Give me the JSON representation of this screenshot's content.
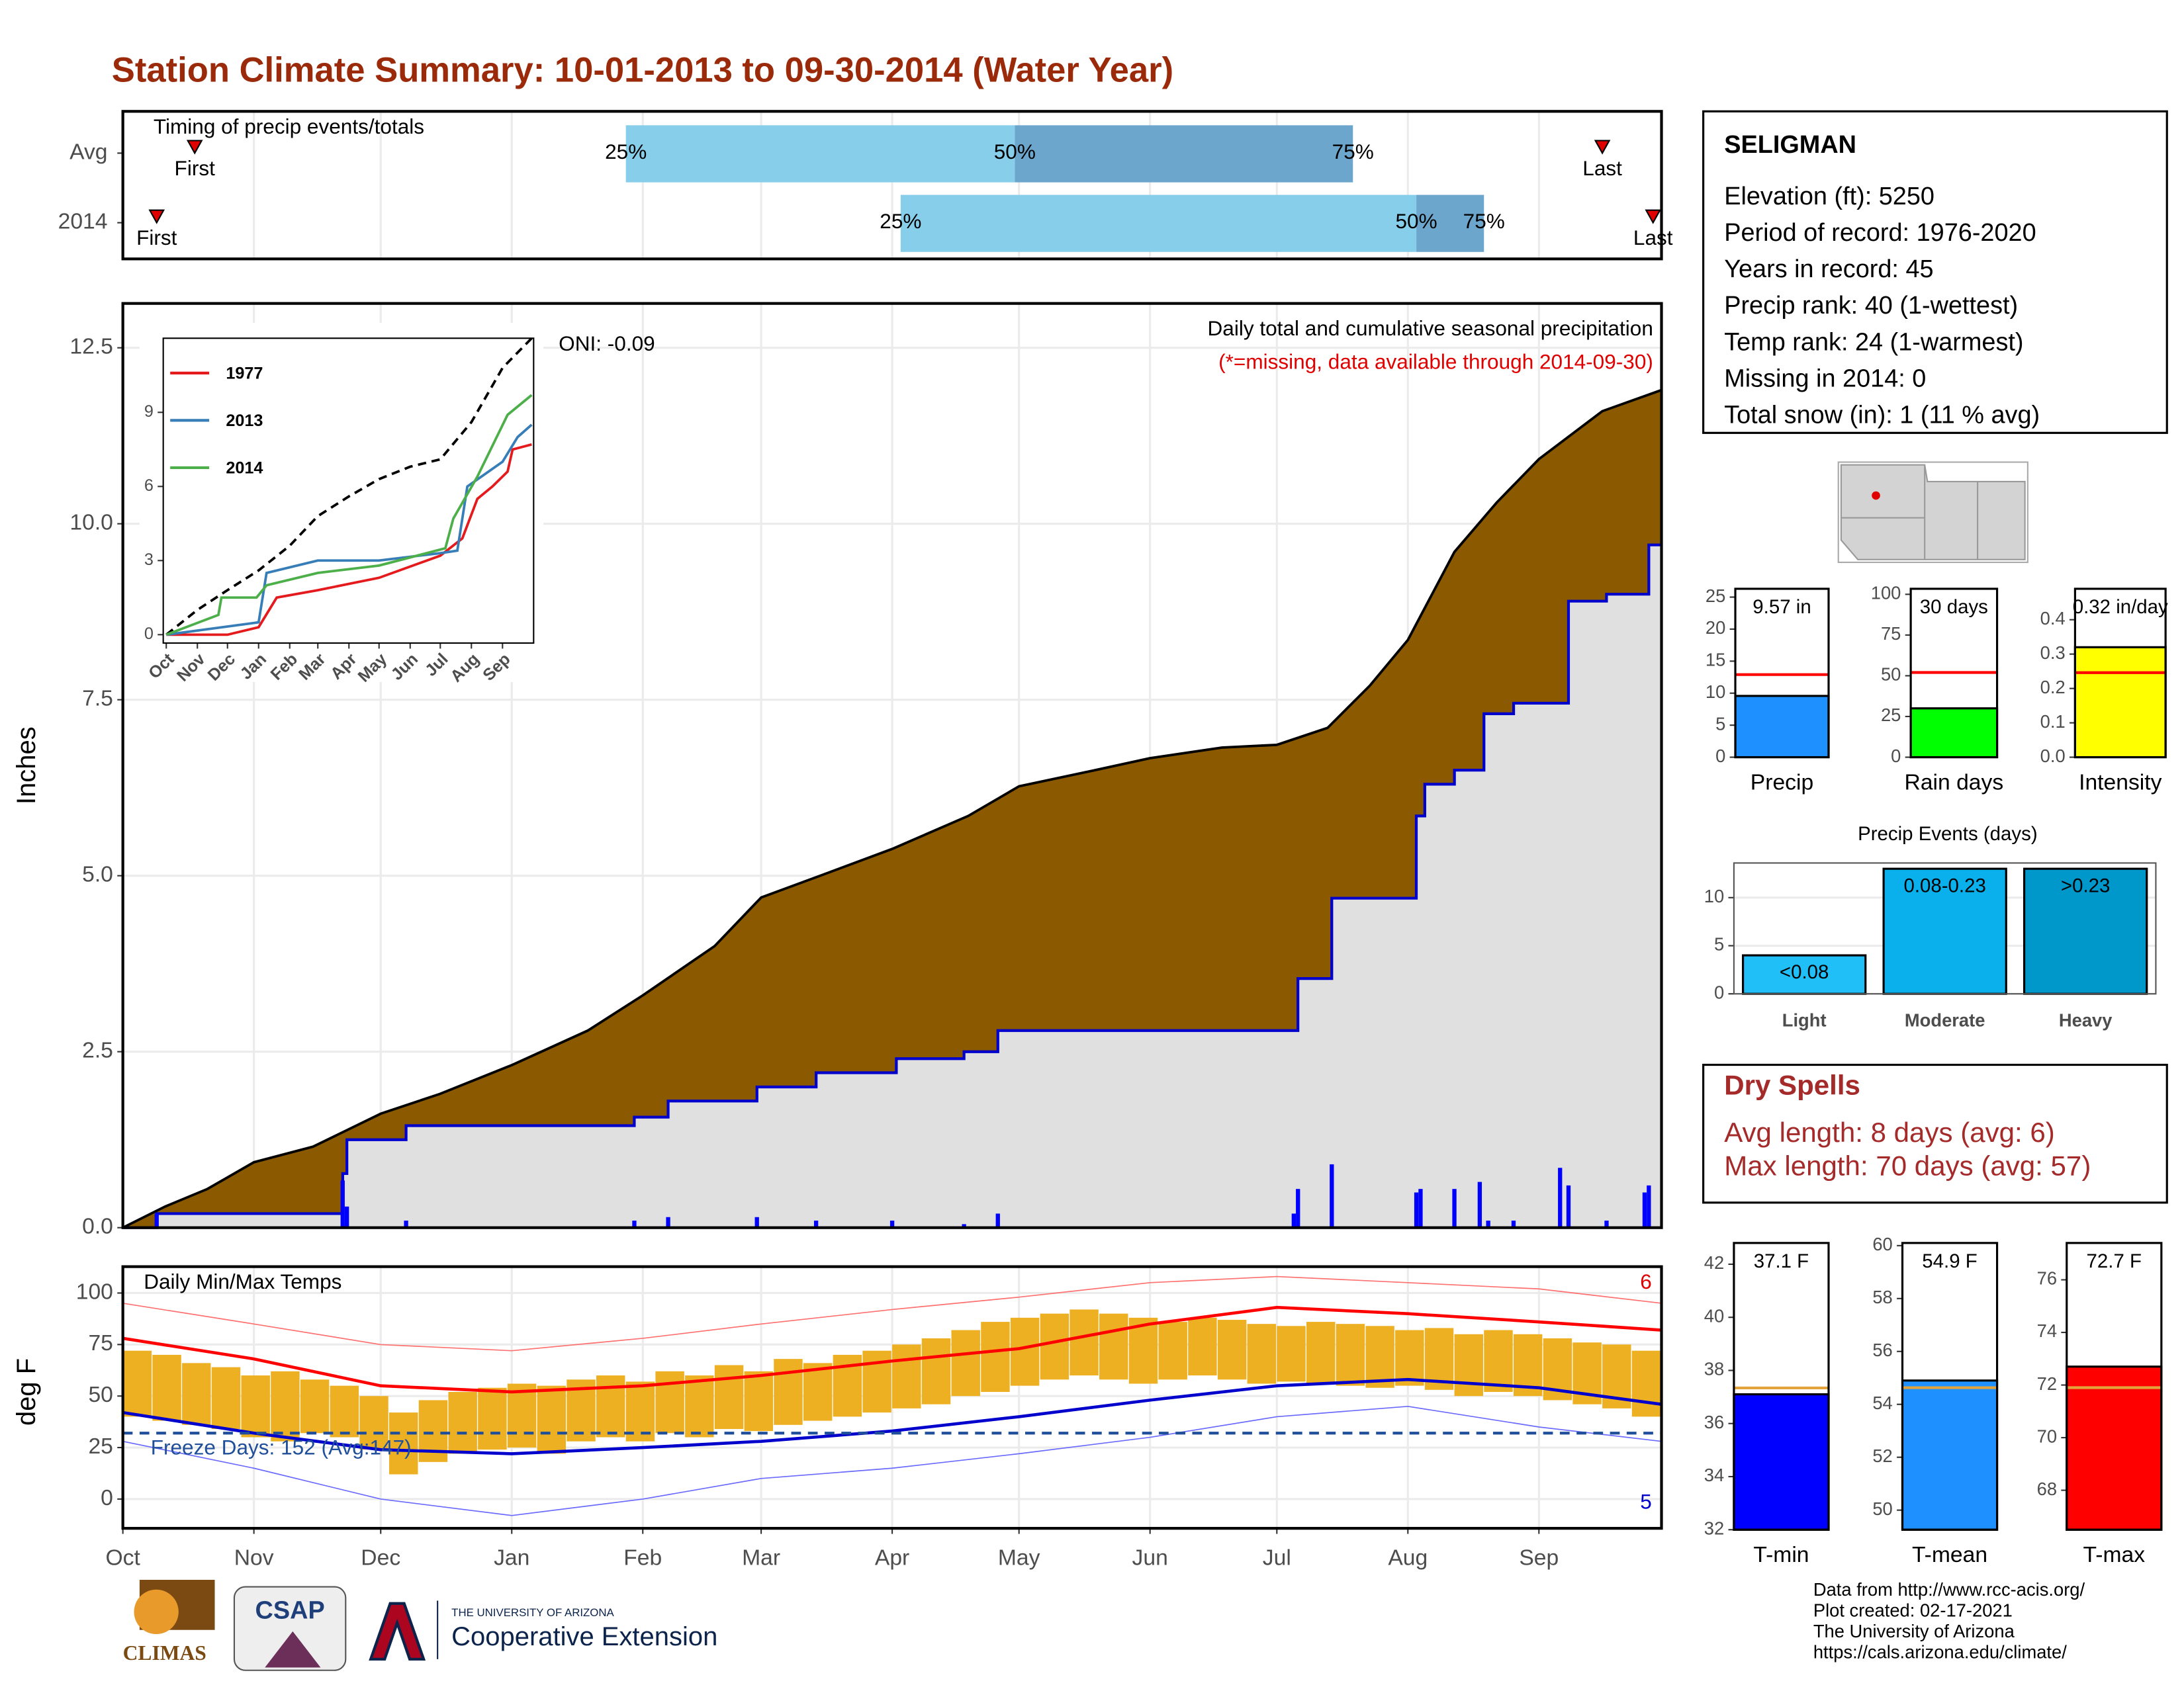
{
  "title": "Station Climate Summary: 10-01-2013 to 09-30-2014 (Water Year)",
  "chart_data": [
    {
      "type": "timing",
      "subtitle": "Timing of precip events/totals",
      "xlim": [
        0,
        364
      ],
      "rows": [
        {
          "name": "Avg",
          "first": 17,
          "q25": 119,
          "q50": 211,
          "q75": 291,
          "last": 350
        },
        {
          "name": "2014",
          "first": 8,
          "q25": 184,
          "q50": 306,
          "q75": 322,
          "last": 362
        }
      ],
      "labels": {
        "first": "First",
        "last": "Last",
        "q25": "25%",
        "q50": "50%",
        "q75": "75%"
      },
      "colors": [
        "#87CEEB",
        "#6CA6CD"
      ],
      "marker_color": "#E00000"
    },
    {
      "type": "precip",
      "ylabel": "Inches",
      "xlim": [
        0,
        364
      ],
      "ylim": [
        0,
        13.13
      ],
      "yticks": [
        {
          "value": 0,
          "label": "0.0"
        },
        2.5,
        {
          "value": 5,
          "label": "5.0"
        },
        7.5,
        {
          "value": 10,
          "label": "10.0"
        },
        12.5
      ],
      "grid": true,
      "annotations": [
        "Daily total and cumulative seasonal precipitation",
        "(*=missing, data available through 2014-09-30)",
        "ONI: -0.09"
      ],
      "annotation_colors": [
        "#000000",
        "#E00000",
        "#000000"
      ],
      "average": {
        "color": "#8B5A00",
        "x": [
          0,
          10,
          20,
          31,
          45,
          61,
          75,
          92,
          110,
          123,
          140,
          151,
          165,
          182,
          200,
          212,
          230,
          243,
          260,
          273,
          285,
          295,
          304,
          315,
          325,
          335,
          350,
          364
        ],
        "values": [
          0,
          0.3,
          0.55,
          0.93,
          1.15,
          1.62,
          1.9,
          2.31,
          2.8,
          3.3,
          4.0,
          4.69,
          5.0,
          5.38,
          5.85,
          6.27,
          6.5,
          6.67,
          6.82,
          6.86,
          7.1,
          7.7,
          8.35,
          9.6,
          10.3,
          10.92,
          11.6,
          11.9
        ]
      },
      "cumulative": {
        "color": "#0000CD",
        "fill": "#E0E0E0",
        "x": [
          0,
          8,
          52,
          53,
          67,
          121,
          129,
          150,
          164,
          183,
          199,
          207,
          278,
          286,
          306,
          308,
          315,
          322,
          329,
          342,
          351,
          361,
          364
        ],
        "values": [
          0,
          0.2,
          0.77,
          1.25,
          1.45,
          1.57,
          1.8,
          2.0,
          2.2,
          2.4,
          2.5,
          2.8,
          3.54,
          4.68,
          5.85,
          6.3,
          6.5,
          7.3,
          7.45,
          8.9,
          9.0,
          9.7,
          9.7
        ]
      },
      "daily": {
        "color": "#0000FF",
        "x": [
          8,
          52,
          53,
          67,
          121,
          129,
          150,
          164,
          182,
          199,
          207,
          277,
          278,
          286,
          306,
          307,
          315,
          321,
          323,
          329,
          340,
          342,
          351,
          360,
          361
        ],
        "values": [
          0.2,
          0.67,
          0.3,
          0.1,
          0.1,
          0.15,
          0.15,
          0.1,
          0.1,
          0.05,
          0.2,
          0.2,
          0.55,
          0.9,
          0.5,
          0.55,
          0.55,
          0.65,
          0.1,
          0.1,
          0.85,
          0.6,
          0.1,
          0.5,
          0.6
        ]
      }
    },
    {
      "type": "inset",
      "xlim": [
        -3,
        366
      ],
      "ylim": [
        -0.34,
        12
      ],
      "yticks": [
        0,
        3,
        6,
        9
      ],
      "xticks": [
        {
          "value": 0,
          "label": "Oct"
        },
        {
          "value": 31,
          "label": "Nov"
        },
        {
          "value": 61,
          "label": "Dec"
        },
        {
          "value": 92,
          "label": "Jan"
        },
        {
          "value": 123,
          "label": "Feb"
        },
        {
          "value": 151,
          "label": "Mar"
        },
        {
          "value": 182,
          "label": "Apr"
        },
        {
          "value": 212,
          "label": "May"
        },
        {
          "value": 243,
          "label": "Jun"
        },
        {
          "value": 273,
          "label": "Jul"
        },
        {
          "value": 304,
          "label": "Aug"
        },
        {
          "value": 335,
          "label": "Sep"
        }
      ],
      "series": [
        {
          "color": "#000000",
          "dashed": true,
          "x": [
            0,
            31,
            61,
            92,
            123,
            151,
            182,
            212,
            243,
            273,
            304,
            335,
            364
          ],
          "values": [
            0,
            1,
            1.8,
            2.6,
            3.6,
            4.8,
            5.6,
            6.3,
            6.8,
            7.1,
            8.6,
            10.8,
            12
          ]
        },
        {
          "name": "1977",
          "color": "#E41A1C",
          "x": [
            0,
            31,
            61,
            92,
            110,
            151,
            212,
            273,
            295,
            310,
            325,
            340,
            345,
            364
          ],
          "values": [
            0,
            0,
            0,
            0.3,
            1.5,
            1.8,
            2.3,
            3.2,
            3.9,
            5.5,
            6.0,
            6.6,
            7.5,
            7.7
          ]
        },
        {
          "name": "2013",
          "color": "#377EB8",
          "x": [
            0,
            92,
            100,
            151,
            212,
            273,
            290,
            300,
            335,
            350,
            364
          ],
          "values": [
            0,
            0.5,
            2.5,
            3,
            3,
            3.3,
            3.4,
            6,
            7,
            8,
            8.5
          ]
        },
        {
          "name": "2014",
          "color": "#4DAF4A",
          "x": [
            0,
            52,
            55,
            90,
            100,
            151,
            212,
            278,
            286,
            310,
            322,
            340,
            364
          ],
          "values": [
            0,
            0.8,
            1.5,
            1.5,
            2,
            2.5,
            2.8,
            3.5,
            4.7,
            6.4,
            7.4,
            8.9,
            9.7
          ]
        }
      ]
    },
    {
      "type": "temperature",
      "ylabel": "deg F",
      "xlim": [
        0,
        364
      ],
      "ylim": [
        -14.2,
        112.8
      ],
      "yticks": [
        0,
        25,
        50,
        75,
        100
      ],
      "grid": true,
      "xticks": [
        {
          "value": 0,
          "label": "Oct"
        },
        {
          "value": 31,
          "label": "Nov"
        },
        {
          "value": 61,
          "label": "Dec"
        },
        {
          "value": 92,
          "label": "Jan"
        },
        {
          "value": 123,
          "label": "Feb"
        },
        {
          "value": 151,
          "label": "Mar"
        },
        {
          "value": 182,
          "label": "Apr"
        },
        {
          "value": 212,
          "label": "May"
        },
        {
          "value": 243,
          "label": "Jun"
        },
        {
          "value": 273,
          "label": "Jul"
        },
        {
          "value": 304,
          "label": "Aug"
        },
        {
          "value": 335,
          "label": "Sep"
        }
      ],
      "annotations": [
        "Daily Min/Max Temps",
        "Freeze Days: 152 (Avg:147)",
        "6",
        "5"
      ],
      "annotation_colors": [
        "#000000",
        "#1F4E9A",
        "#E00000",
        "#0000CD"
      ],
      "freeze": 32,
      "freeze_color": "#1F4E9A",
      "bars": {
        "color": "#EEB023",
        "x": [
          0,
          7,
          14,
          21,
          28,
          35,
          42,
          49,
          56,
          63,
          70,
          77,
          84,
          91,
          98,
          105,
          112,
          119,
          126,
          133,
          140,
          147,
          154,
          161,
          168,
          175,
          182,
          189,
          196,
          203,
          210,
          217,
          224,
          231,
          238,
          245,
          252,
          259,
          266,
          273,
          280,
          287,
          294,
          301,
          308,
          315,
          322,
          329,
          336,
          343,
          350,
          357
        ],
        "min": [
          40,
          38,
          36,
          34,
          30,
          28,
          32,
          30,
          24,
          12,
          18,
          22,
          24,
          25,
          22,
          28,
          30,
          28,
          32,
          30,
          34,
          33,
          36,
          38,
          40,
          42,
          44,
          46,
          50,
          52,
          55,
          58,
          60,
          58,
          56,
          58,
          60,
          58,
          56,
          57,
          56,
          55,
          54,
          55,
          53,
          50,
          52,
          50,
          48,
          46,
          44,
          40
        ],
        "max": [
          72,
          70,
          66,
          64,
          60,
          62,
          58,
          55,
          50,
          42,
          48,
          52,
          54,
          56,
          55,
          58,
          60,
          57,
          62,
          60,
          65,
          62,
          68,
          66,
          70,
          72,
          75,
          78,
          82,
          86,
          88,
          90,
          92,
          90,
          88,
          86,
          88,
          87,
          85,
          84,
          86,
          85,
          84,
          82,
          83,
          80,
          82,
          80,
          78,
          76,
          75,
          72
        ]
      },
      "series": [
        {
          "color": "#FF0000",
          "width": 2.2,
          "x": [
            0,
            31,
            61,
            92,
            123,
            151,
            182,
            212,
            243,
            273,
            304,
            335,
            364
          ],
          "values": [
            78,
            68,
            55,
            52,
            55,
            60,
            67,
            73,
            85,
            93,
            90,
            86,
            82
          ]
        },
        {
          "color": "#0000CD",
          "width": 2.2,
          "x": [
            0,
            31,
            61,
            92,
            123,
            151,
            182,
            212,
            243,
            273,
            304,
            335,
            364
          ],
          "values": [
            42,
            32,
            24,
            22,
            25,
            28,
            33,
            40,
            48,
            55,
            58,
            54,
            46
          ]
        },
        {
          "color": "#FF7070",
          "width": 0.8,
          "x": [
            0,
            31,
            61,
            92,
            123,
            151,
            182,
            212,
            243,
            273,
            304,
            335,
            364
          ],
          "values": [
            95,
            85,
            75,
            72,
            78,
            85,
            92,
            98,
            105,
            108,
            105,
            102,
            95
          ]
        },
        {
          "color": "#6A6AFF",
          "width": 0.8,
          "x": [
            0,
            31,
            61,
            92,
            123,
            151,
            182,
            212,
            243,
            273,
            304,
            335,
            364
          ],
          "values": [
            28,
            15,
            0,
            -8,
            0,
            10,
            15,
            22,
            30,
            40,
            45,
            35,
            28
          ]
        }
      ]
    },
    {
      "type": "gauge",
      "label": "Precip",
      "value": 9.57,
      "value_label": "9.57 in",
      "avg": 12.9,
      "ylim": [
        0,
        26.3
      ],
      "yticks": [
        0,
        5,
        10,
        15,
        20,
        25
      ],
      "color": "#1E90FF",
      "avg_color": "#FF0000"
    },
    {
      "type": "gauge",
      "label": "Rain days",
      "value": 30,
      "value_label": "30 days",
      "avg": 52,
      "ylim": [
        0,
        103.4
      ],
      "yticks": [
        0,
        25,
        50,
        75,
        100
      ],
      "color": "#00FF00",
      "avg_color": "#FF0000"
    },
    {
      "type": "gauge",
      "label": "Intensity",
      "value": 0.32,
      "value_label": "0.32 in/day",
      "avg": 0.246,
      "ylim": [
        0,
        0.49
      ],
      "yticks": [
        {
          "value": 0,
          "label": "0.0"
        },
        0.1,
        0.2,
        0.3,
        0.4
      ],
      "color": "#FFFF00",
      "avg_color": "#FF0000"
    },
    {
      "type": "bar",
      "title": "Precip Events (days)",
      "categories": [
        "Light",
        "Moderate",
        "Heavy"
      ],
      "values": [
        4,
        13,
        13
      ],
      "value_labels": [
        "<0.08",
        "0.08-0.23",
        ">0.23"
      ],
      "colors": [
        "#20BFF7",
        "#0AB0EC",
        "#0098CB"
      ],
      "ylim": [
        0,
        13.6
      ],
      "yticks": [
        0,
        5,
        10
      ],
      "grid": true
    },
    {
      "type": "gauge",
      "label": "T-min",
      "value": 37.1,
      "value_label": "37.1 F",
      "avg": 37.34,
      "ylim": [
        32,
        42.8
      ],
      "yticks": [
        32,
        34,
        36,
        38,
        40,
        42
      ],
      "color": "#0000FF",
      "avg_color": "#E3A33A"
    },
    {
      "type": "gauge",
      "label": "T-mean",
      "value": 54.9,
      "value_label": "54.9 F",
      "avg": 54.63,
      "ylim": [
        49.26,
        60.1
      ],
      "yticks": [
        50,
        52,
        54,
        56,
        58,
        60
      ],
      "color": "#1E90FF",
      "avg_color": "#E3A33A"
    },
    {
      "type": "gauge",
      "label": "T-max",
      "value": 72.7,
      "value_label": "72.7 F",
      "avg": 71.9,
      "ylim": [
        66.5,
        77.4
      ],
      "yticks": [
        68,
        70,
        72,
        74,
        76
      ],
      "color": "#FF0000",
      "avg_color": "#E3A33A"
    }
  ],
  "station": {
    "name": "SELIGMAN",
    "lines": [
      "Elevation (ft): 5250",
      "Period of record: 1976-2020",
      "Years in record: 45",
      "Precip rank: 40 (1-wettest)",
      "Temp rank: 24 (1-warmest)",
      "Missing in 2014: 0",
      "Total snow (in): 1 (11 % avg)"
    ]
  },
  "dry_spells": {
    "title": "Dry Spells",
    "lines": [
      "Avg length: 8 days (avg: 6)",
      "Max length: 70 days (avg: 57)"
    ]
  },
  "footer": [
    "Data from http://www.rcc-acis.org/",
    "Plot created: 02-17-2021",
    "The University of Arizona",
    "https://cals.arizona.edu/climate/"
  ],
  "logos": {
    "climas": "CLIMAS",
    "csap": "CSAP",
    "university": "THE UNIVERSITY OF ARIZONA",
    "extension": "Cooperative Extension"
  }
}
